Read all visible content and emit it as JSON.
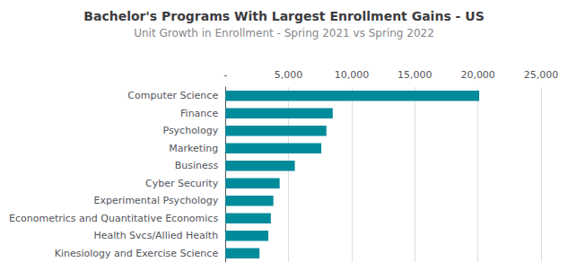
{
  "chart_data": {
    "type": "bar",
    "orientation": "horizontal",
    "title": "Bachelor's Programs With Largest Enrollment Gains - US",
    "subtitle": "Unit Growth in Enrollment - Spring 2021 vs Spring 2022",
    "categories": [
      "Kinesiology and Exercise Science",
      "Health Svcs/Allied Health",
      "Econometrics and Quantitative Economics",
      "Experimental Psychology",
      "Cyber Security",
      "Business",
      "Marketing",
      "Psychology",
      "Finance",
      "Computer Science"
    ],
    "values": [
      2700,
      3400,
      3600,
      3800,
      4300,
      5500,
      7600,
      8000,
      8500,
      20100
    ],
    "color": "#008B9B",
    "xlim": [
      0,
      25000
    ],
    "xticks": [
      {
        "value": 0,
        "label": "-"
      },
      {
        "value": 5000,
        "label": "5,000"
      },
      {
        "value": 10000,
        "label": "10,000"
      },
      {
        "value": 15000,
        "label": "15,000"
      },
      {
        "value": 20000,
        "label": "20,000"
      },
      {
        "value": 25000,
        "label": "25,000"
      }
    ],
    "grid": true
  }
}
